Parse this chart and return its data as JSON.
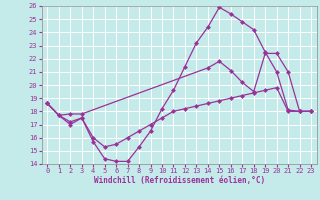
{
  "xlabel": "Windchill (Refroidissement éolien,°C)",
  "xlim": [
    -0.5,
    23.5
  ],
  "ylim": [
    14,
    26
  ],
  "xticks": [
    0,
    1,
    2,
    3,
    4,
    5,
    6,
    7,
    8,
    9,
    10,
    11,
    12,
    13,
    14,
    15,
    16,
    17,
    18,
    19,
    20,
    21,
    22,
    23
  ],
  "yticks": [
    14,
    15,
    16,
    17,
    18,
    19,
    20,
    21,
    22,
    23,
    24,
    25,
    26
  ],
  "bg_color": "#c5eaea",
  "line_color": "#993399",
  "grid_color": "#ffffff",
  "line1_x": [
    0,
    1,
    2,
    3,
    4,
    5,
    6,
    7,
    8,
    9,
    10,
    11,
    12,
    13,
    14,
    15,
    16,
    17,
    18,
    19,
    20,
    21,
    22,
    23
  ],
  "line1_y": [
    18.6,
    17.7,
    17.0,
    17.5,
    15.7,
    14.4,
    14.2,
    14.2,
    15.3,
    16.5,
    18.2,
    19.6,
    21.4,
    23.2,
    24.4,
    25.9,
    25.4,
    24.8,
    24.2,
    22.5,
    21.0,
    18.1,
    18.0,
    18.0
  ],
  "line2_x": [
    0,
    1,
    2,
    3,
    14,
    15,
    16,
    17,
    18,
    19,
    20,
    21,
    22,
    23
  ],
  "line2_y": [
    18.6,
    17.7,
    17.8,
    17.8,
    21.3,
    21.8,
    21.1,
    20.2,
    19.5,
    22.4,
    22.4,
    21.0,
    18.0,
    18.0
  ],
  "line3_x": [
    0,
    1,
    2,
    3,
    4,
    5,
    6,
    7,
    8,
    9,
    10,
    11,
    12,
    13,
    14,
    15,
    16,
    17,
    18,
    19,
    20,
    21,
    22,
    23
  ],
  "line3_y": [
    18.6,
    17.7,
    17.2,
    17.5,
    16.0,
    15.3,
    15.5,
    16.0,
    16.5,
    17.0,
    17.5,
    18.0,
    18.2,
    18.4,
    18.6,
    18.8,
    19.0,
    19.2,
    19.4,
    19.6,
    19.8,
    18.0,
    18.0,
    18.0
  ]
}
